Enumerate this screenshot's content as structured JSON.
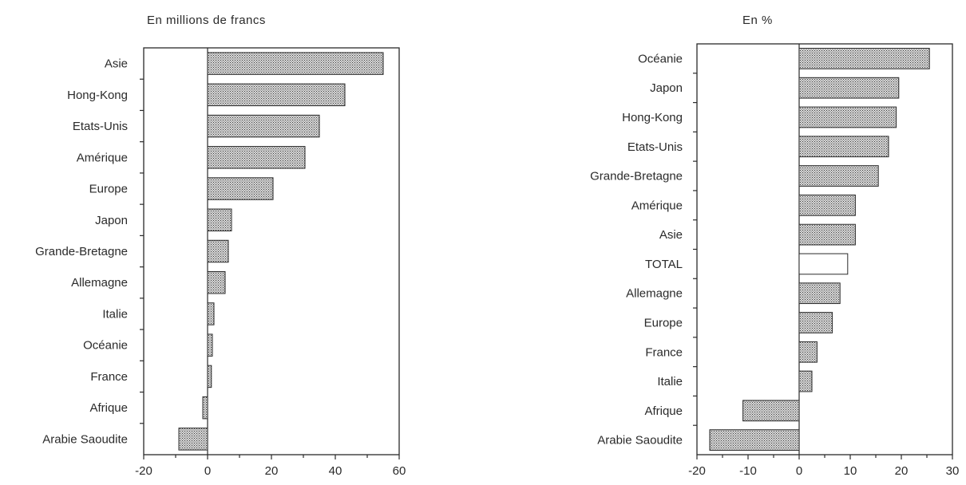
{
  "chart_data": [
    {
      "type": "bar",
      "orientation": "horizontal",
      "title": "En millions de francs",
      "categories": [
        "Asie",
        "Hong-Kong",
        "Etats-Unis",
        "Amérique",
        "Europe",
        "Japon",
        "Grande-Bretagne",
        "Allemagne",
        "Italie",
        "Océanie",
        "France",
        "Afrique",
        "Arabie Saoudite"
      ],
      "values": [
        55,
        43,
        35,
        30.5,
        20.5,
        7.5,
        6.5,
        5.5,
        2,
        1.5,
        1.2,
        -1.5,
        -9
      ],
      "xlim": [
        -20,
        60
      ],
      "xticks": [
        "-20",
        "0",
        "20",
        "40",
        "60"
      ],
      "fill_pattern": "crosshatch-gray",
      "grid": false,
      "legend": "none"
    },
    {
      "type": "bar",
      "orientation": "horizontal",
      "title": "En %",
      "categories": [
        "Océanie",
        "Japon",
        "Hong-Kong",
        "Etats-Unis",
        "Grande-Bretagne",
        "Amérique",
        "Asie",
        "TOTAL",
        "Allemagne",
        "Europe",
        "France",
        "Italie",
        "Afrique",
        "Arabie Saoudite"
      ],
      "values": [
        25.5,
        19.5,
        19,
        17.5,
        15.5,
        11,
        11,
        9.5,
        8,
        6.5,
        3.5,
        2.5,
        -11,
        -17.5
      ],
      "highlight": "TOTAL",
      "xlim": [
        -20,
        30
      ],
      "xticks": [
        "-20",
        "-10",
        "0",
        "10",
        "20",
        "30"
      ],
      "fill_pattern": "crosshatch-gray",
      "grid": false,
      "legend": "none"
    }
  ]
}
